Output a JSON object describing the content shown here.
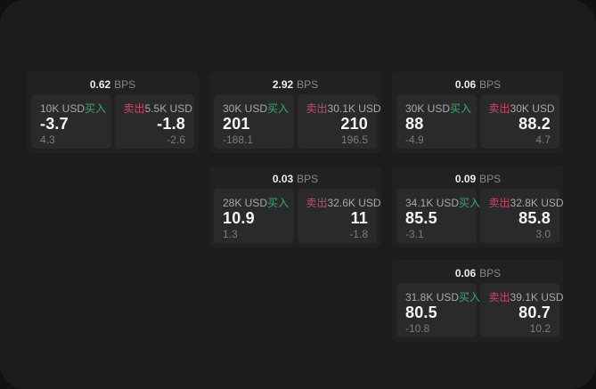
{
  "labels": {
    "bps_unit": "BPS",
    "buy": "买入",
    "sell": "卖出"
  },
  "theme": {
    "surface_bg": "#1c1c1e",
    "card_bg": "#212124",
    "panel_bg": "#2a2a2d",
    "buy_color": "#3aa863",
    "sell_color": "#c94a61"
  },
  "cards": [
    {
      "bps": "0.62",
      "buy": {
        "amount": "10K USD",
        "price": "-3.7",
        "change": "4.3"
      },
      "sell": {
        "amount": "5.5K USD",
        "price": "-1.8",
        "change": "-2.6"
      }
    },
    {
      "bps": "2.92",
      "buy": {
        "amount": "30K USD",
        "price": "201",
        "change": "-188.1"
      },
      "sell": {
        "amount": "30.1K USD",
        "price": "210",
        "change": "196.5"
      }
    },
    {
      "bps": "0.06",
      "buy": {
        "amount": "30K USD",
        "price": "88",
        "change": "-4.9"
      },
      "sell": {
        "amount": "30K USD",
        "price": "88.2",
        "change": "4.7"
      }
    },
    {
      "bps": "0.03",
      "buy": {
        "amount": "28K USD",
        "price": "10.9",
        "change": "1.3"
      },
      "sell": {
        "amount": "32.6K USD",
        "price": "11",
        "change": "-1.8"
      }
    },
    {
      "bps": "0.09",
      "buy": {
        "amount": "34.1K USD",
        "price": "85.5",
        "change": "-3.1"
      },
      "sell": {
        "amount": "32.8K USD",
        "price": "85.8",
        "change": "3.0"
      }
    },
    {
      "bps": "0.06",
      "buy": {
        "amount": "31.8K USD",
        "price": "80.5",
        "change": "-10.8"
      },
      "sell": {
        "amount": "39.1K USD",
        "price": "80.7",
        "change": "10.2"
      }
    }
  ]
}
